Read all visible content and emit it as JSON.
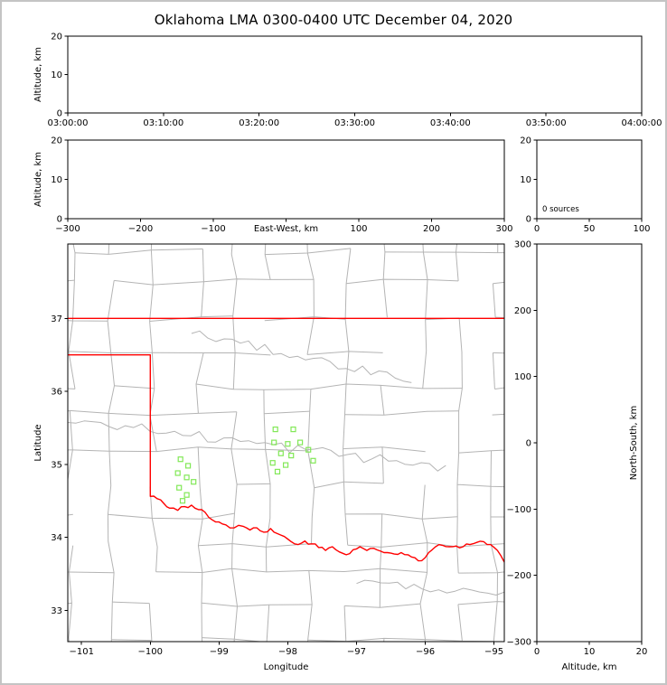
{
  "title": "Oklahoma LMA 0300-0400 UTC December 04, 2020",
  "colors": {
    "state_border": "#ff0000",
    "county_line": "#b4b4b4",
    "source": "#82e857",
    "axis": "#000000",
    "frame": "#c4c4c4",
    "background": "#ffffff"
  },
  "chart_data": [
    {
      "id": "time-height",
      "type": "scatter",
      "xlabel": "",
      "ylabel": "Altitude, km",
      "xlim": [
        0,
        6
      ],
      "xticks": [
        0,
        1,
        2,
        3,
        4,
        5,
        6
      ],
      "xtick_labels": [
        "03:00:00",
        "03:10:00",
        "03:20:00",
        "03:30:00",
        "03:40:00",
        "03:50:00",
        "04:00:00"
      ],
      "ylim": [
        0,
        20
      ],
      "yticks": [
        0,
        10,
        20
      ],
      "ytick_labels": [
        "0",
        "10",
        "20"
      ],
      "grid": false,
      "points": []
    },
    {
      "id": "east-west-height",
      "type": "scatter",
      "xlabel": "East-West, km",
      "ylabel": "Altitude, km",
      "xlim": [
        -300,
        300
      ],
      "xticks": [
        -300,
        -200,
        -100,
        0,
        100,
        200,
        300
      ],
      "xtick_labels": [
        "−300",
        "−200",
        "−100",
        "",
        "100",
        "200",
        "300"
      ],
      "ylim": [
        0,
        20
      ],
      "yticks": [
        0,
        10,
        20
      ],
      "ytick_labels": [
        "0",
        "10",
        "20"
      ],
      "grid": false,
      "points": []
    },
    {
      "id": "source-histogram",
      "type": "scatter",
      "annotation": "0 sources",
      "xlim": [
        0,
        100
      ],
      "xticks": [
        0,
        50,
        100
      ],
      "xtick_labels": [
        "0",
        "50",
        "100"
      ],
      "ylim": [
        0,
        20
      ],
      "yticks": [
        0,
        10,
        20
      ],
      "ytick_labels": [
        "0",
        "10",
        "20"
      ],
      "grid": false,
      "points": []
    },
    {
      "id": "plan-view-map",
      "type": "scatter",
      "xlabel": "Longitude",
      "ylabel": "Latitude",
      "xlim": [
        -101.2,
        -94.85
      ],
      "xticks": [
        -101,
        -100,
        -99,
        -98,
        -97,
        -96,
        -95
      ],
      "xtick_labels": [
        "−101",
        "−100",
        "−99",
        "−98",
        "−97",
        "−96",
        "−95"
      ],
      "ylim": [
        32.57,
        38.02
      ],
      "yticks": [
        33,
        34,
        35,
        36,
        37
      ],
      "ytick_labels": [
        "33",
        "34",
        "35",
        "36",
        "37"
      ],
      "grid": false,
      "points": [],
      "stations": [
        [
          -98.18,
          35.48
        ],
        [
          -97.92,
          35.48
        ],
        [
          -98.2,
          35.3
        ],
        [
          -98.0,
          35.28
        ],
        [
          -97.82,
          35.3
        ],
        [
          -98.1,
          35.15
        ],
        [
          -97.95,
          35.12
        ],
        [
          -98.22,
          35.02
        ],
        [
          -98.03,
          34.99
        ],
        [
          -98.15,
          34.9
        ],
        [
          -97.7,
          35.2
        ],
        [
          -97.63,
          35.05
        ],
        [
          -99.56,
          35.07
        ],
        [
          -99.45,
          34.98
        ],
        [
          -99.6,
          34.88
        ],
        [
          -99.47,
          34.82
        ],
        [
          -99.37,
          34.76
        ],
        [
          -99.58,
          34.68
        ],
        [
          -99.47,
          34.58
        ],
        [
          -99.53,
          34.5
        ]
      ]
    },
    {
      "id": "north-south-height",
      "type": "scatter",
      "xlabel": "Altitude, km",
      "ylabel": "North-South, km",
      "xlim": [
        0,
        20
      ],
      "xticks": [
        0,
        10,
        20
      ],
      "xtick_labels": [
        "0",
        "10",
        "20"
      ],
      "ylim": [
        -300,
        300
      ],
      "yticks": [
        -300,
        -200,
        -100,
        0,
        100,
        200,
        300
      ],
      "ytick_labels": [
        "−300",
        "−200",
        "−100",
        "0",
        "100",
        "200",
        "300"
      ],
      "grid": false,
      "points": []
    }
  ],
  "basemap": {
    "north_border_lat": 37.0,
    "panhandle_border": [
      [
        -101.2,
        36.5
      ],
      [
        -100.0,
        36.5
      ],
      [
        -100.0,
        34.56
      ]
    ],
    "red_river": [
      [
        -100.0,
        34.56
      ],
      [
        -99.9,
        34.53
      ],
      [
        -99.8,
        34.46
      ],
      [
        -99.72,
        34.4
      ],
      [
        -99.6,
        34.37
      ],
      [
        -99.5,
        34.42
      ],
      [
        -99.4,
        34.44
      ],
      [
        -99.3,
        34.38
      ],
      [
        -99.2,
        34.34
      ],
      [
        -99.1,
        34.24
      ],
      [
        -99.0,
        34.21
      ],
      [
        -98.9,
        34.17
      ],
      [
        -98.78,
        34.13
      ],
      [
        -98.65,
        34.15
      ],
      [
        -98.55,
        34.1
      ],
      [
        -98.45,
        34.13
      ],
      [
        -98.35,
        34.07
      ],
      [
        -98.25,
        34.12
      ],
      [
        -98.15,
        34.05
      ],
      [
        -98.05,
        34.01
      ],
      [
        -97.95,
        33.94
      ],
      [
        -97.85,
        33.9
      ],
      [
        -97.75,
        33.95
      ],
      [
        -97.65,
        33.91
      ],
      [
        -97.55,
        33.86
      ],
      [
        -97.45,
        33.82
      ],
      [
        -97.35,
        33.87
      ],
      [
        -97.25,
        33.8
      ],
      [
        -97.15,
        33.76
      ],
      [
        -97.05,
        33.83
      ],
      [
        -96.95,
        33.87
      ],
      [
        -96.85,
        33.82
      ],
      [
        -96.75,
        33.85
      ],
      [
        -96.65,
        33.81
      ],
      [
        -96.55,
        33.79
      ],
      [
        -96.45,
        33.77
      ],
      [
        -96.35,
        33.79
      ],
      [
        -96.25,
        33.76
      ],
      [
        -96.15,
        33.72
      ],
      [
        -96.05,
        33.68
      ],
      [
        -95.95,
        33.79
      ],
      [
        -95.85,
        33.87
      ],
      [
        -95.75,
        33.89
      ],
      [
        -95.65,
        33.87
      ],
      [
        -95.55,
        33.88
      ],
      [
        -95.45,
        33.87
      ],
      [
        -95.35,
        33.9
      ],
      [
        -95.25,
        33.93
      ],
      [
        -95.15,
        33.94
      ],
      [
        -95.05,
        33.9
      ],
      [
        -94.95,
        33.82
      ],
      [
        -94.85,
        33.66
      ]
    ]
  }
}
